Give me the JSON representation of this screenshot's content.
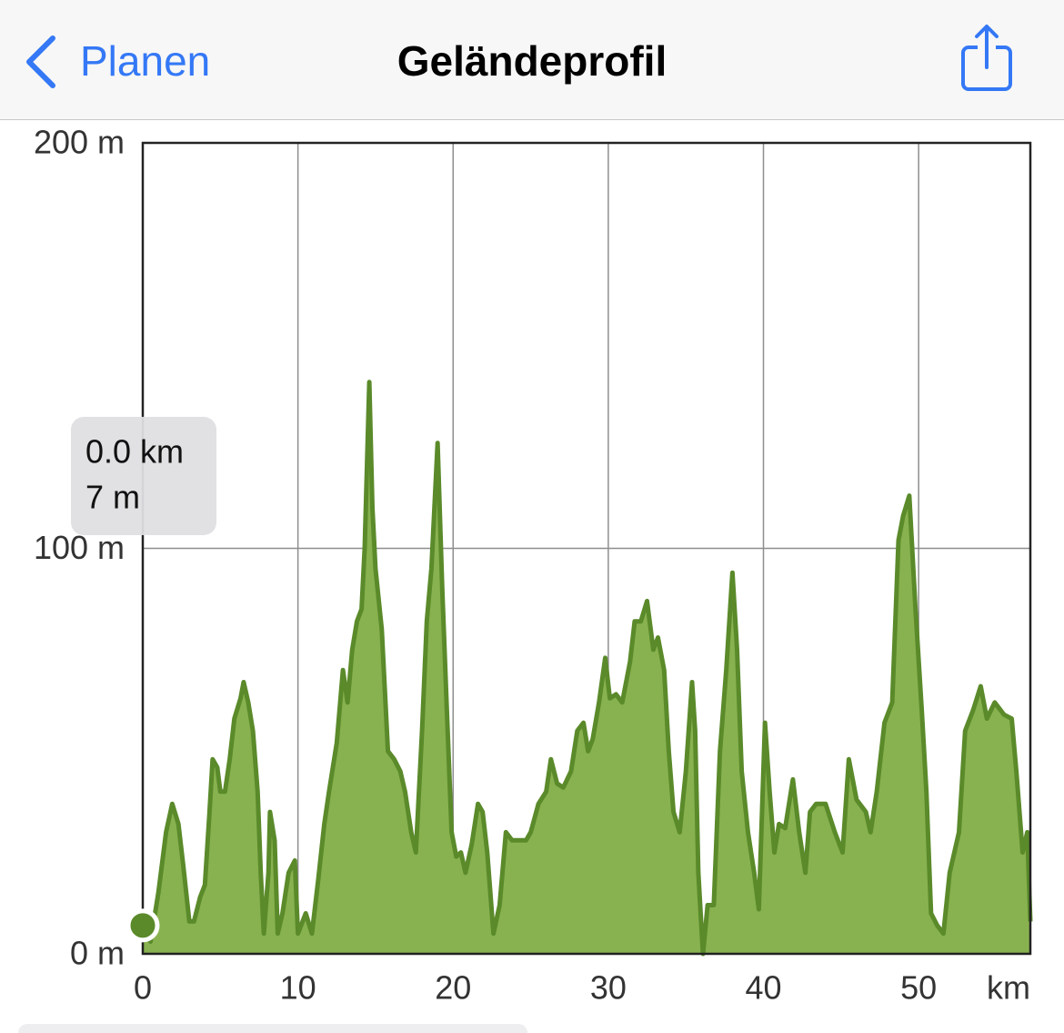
{
  "nav": {
    "back": "Planen",
    "title": "Geländeprofil"
  },
  "tooltip": {
    "distance": "0.0 km",
    "elevation": "7 m"
  },
  "chart_data": {
    "type": "area",
    "color": "#88b24f",
    "line_color": "#5a8a2a",
    "grid": true,
    "x_label": "km",
    "xlim": [
      0,
      57.2
    ],
    "ylim": [
      0,
      200
    ],
    "xticks": [
      0,
      10,
      20,
      30,
      40,
      50
    ],
    "yticks": [
      {
        "value": 0,
        "label": "0 m"
      },
      {
        "value": 100,
        "label": "100 m"
      },
      {
        "value": 200,
        "label": "200 m"
      }
    ],
    "x": [
      0,
      0.5,
      1.0,
      1.5,
      1.9,
      2.3,
      2.6,
      3.0,
      3.3,
      3.7,
      4.0,
      4.3,
      4.5,
      4.8,
      5.0,
      5.3,
      5.6,
      5.9,
      6.3,
      6.5,
      6.8,
      7.1,
      7.4,
      7.6,
      7.8,
      8.1,
      8.2,
      8.5,
      8.7,
      9.0,
      9.4,
      9.8,
      10.0,
      10.5,
      10.9,
      11.3,
      11.7,
      12.0,
      12.5,
      12.9,
      13.2,
      13.5,
      13.8,
      14.1,
      14.3,
      14.6,
      14.8,
      15.0,
      15.4,
      15.8,
      16.2,
      16.6,
      16.9,
      17.3,
      17.6,
      18.0,
      18.3,
      18.6,
      19.0,
      19.3,
      19.6,
      19.9,
      20.2,
      20.5,
      20.8,
      21.2,
      21.6,
      21.9,
      22.2,
      22.6,
      23.0,
      23.4,
      23.8,
      24.2,
      24.7,
      25.0,
      25.5,
      26.0,
      26.3,
      26.7,
      27.1,
      27.6,
      28.0,
      28.4,
      28.7,
      29.0,
      29.4,
      29.8,
      30.1,
      30.5,
      30.9,
      31.4,
      31.7,
      32.1,
      32.5,
      32.9,
      33.2,
      33.6,
      33.9,
      34.2,
      34.6,
      35.0,
      35.4,
      35.6,
      35.8,
      36.1,
      36.4,
      36.8,
      37.2,
      37.6,
      38.0,
      38.3,
      38.6,
      39.0,
      39.4,
      39.7,
      40.1,
      40.4,
      40.7,
      41.0,
      41.4,
      41.9,
      42.3,
      42.7,
      43.0,
      43.4,
      44.0,
      44.6,
      45.1,
      45.5,
      46.0,
      46.6,
      46.9,
      47.3,
      47.8,
      48.3,
      48.7,
      49.0,
      49.4,
      49.8,
      50.2,
      50.5,
      50.8,
      51.2,
      51.6,
      52.0,
      52.6,
      53.0,
      53.5,
      54.0,
      54.4,
      54.9,
      55.5,
      56.0,
      56.3,
      56.7,
      57.0,
      57.2
    ],
    "values": [
      7,
      3,
      15,
      30,
      37,
      32,
      22,
      8,
      8,
      14,
      17,
      35,
      48,
      46,
      40,
      40,
      48,
      58,
      63,
      67,
      62,
      55,
      40,
      20,
      5,
      20,
      35,
      28,
      5,
      10,
      20,
      23,
      5,
      10,
      5,
      18,
      32,
      40,
      52,
      70,
      62,
      75,
      82,
      85,
      100,
      141,
      110,
      95,
      80,
      50,
      48,
      45,
      40,
      30,
      25,
      55,
      82,
      95,
      126,
      90,
      60,
      30,
      24,
      25,
      20,
      27,
      37,
      35,
      25,
      5,
      12,
      30,
      28,
      28,
      28,
      30,
      37,
      40,
      48,
      42,
      41,
      45,
      55,
      57,
      50,
      53,
      62,
      73,
      63,
      64,
      62,
      72,
      82,
      82,
      87,
      75,
      78,
      70,
      50,
      35,
      30,
      45,
      67,
      55,
      20,
      0,
      12,
      12,
      50,
      70,
      94,
      75,
      45,
      30,
      20,
      11,
      57,
      40,
      25,
      32,
      31,
      43,
      30,
      20,
      35,
      37,
      37,
      30,
      25,
      48,
      38,
      35,
      30,
      40,
      57,
      62,
      102,
      108,
      113,
      85,
      60,
      40,
      10,
      7,
      5,
      20,
      30,
      55,
      60,
      66,
      58,
      62,
      59,
      58,
      45,
      25,
      30,
      8
    ]
  }
}
